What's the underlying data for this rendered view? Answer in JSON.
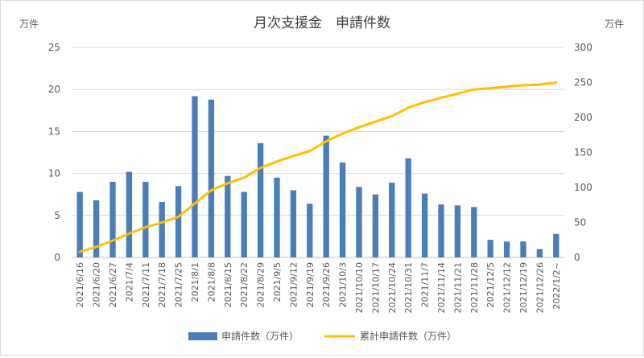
{
  "chart_data": {
    "type": "bar",
    "title": "月次支援金　申請件数",
    "ylabel_left": "万件",
    "ylabel_right": "万件",
    "y_left_range": [
      0,
      25
    ],
    "y_left_ticks": [
      0,
      5,
      10,
      15,
      20,
      25
    ],
    "y_right_range": [
      0,
      300
    ],
    "y_right_ticks": [
      0,
      50,
      100,
      150,
      200,
      250,
      300
    ],
    "legend_position": "bottom",
    "grid": "horizontal",
    "categories": [
      "2021/6/16",
      "2021/6/20",
      "2021/6/27",
      "2021/7/4",
      "2021/7/11",
      "2021/7/18",
      "2021/7/25",
      "2021/8/1",
      "2021/8/8",
      "2021/8/15",
      "2021/8/22",
      "2021/8/29",
      "2021/9/5",
      "2021/9/12",
      "2021/9/19",
      "2021/9/26",
      "2021/10/3",
      "2021/10/10",
      "2021/10/17",
      "2021/10/24",
      "2021/10/31",
      "2021/11/7",
      "2021/11/14",
      "2021/11/21",
      "2021/11/28",
      "2021/12/5",
      "2021/12/12",
      "2021/12/19",
      "2021/12/26",
      "2022/1/2~"
    ],
    "series": [
      {
        "name": "申請件数（万件）",
        "type": "bar",
        "axis": "left",
        "color": "#4a7ebb",
        "values": [
          7.8,
          6.8,
          9.0,
          10.2,
          9.0,
          6.6,
          8.5,
          19.2,
          18.8,
          9.7,
          7.8,
          13.6,
          9.5,
          8.0,
          6.4,
          14.5,
          11.3,
          8.4,
          7.5,
          8.9,
          11.8,
          7.6,
          6.3,
          6.2,
          6.0,
          2.1,
          1.9,
          1.9,
          1.0,
          2.8
        ]
      },
      {
        "name": "累計申請件数（万件）",
        "type": "line",
        "axis": "right",
        "color": "#ffc000",
        "values": [
          8,
          15,
          24,
          34,
          43,
          50,
          58,
          77,
          96,
          106,
          114,
          128,
          137,
          145,
          152,
          166,
          177,
          186,
          194,
          202,
          214,
          222,
          228,
          234,
          240,
          242,
          244,
          246,
          247,
          250
        ]
      }
    ]
  }
}
